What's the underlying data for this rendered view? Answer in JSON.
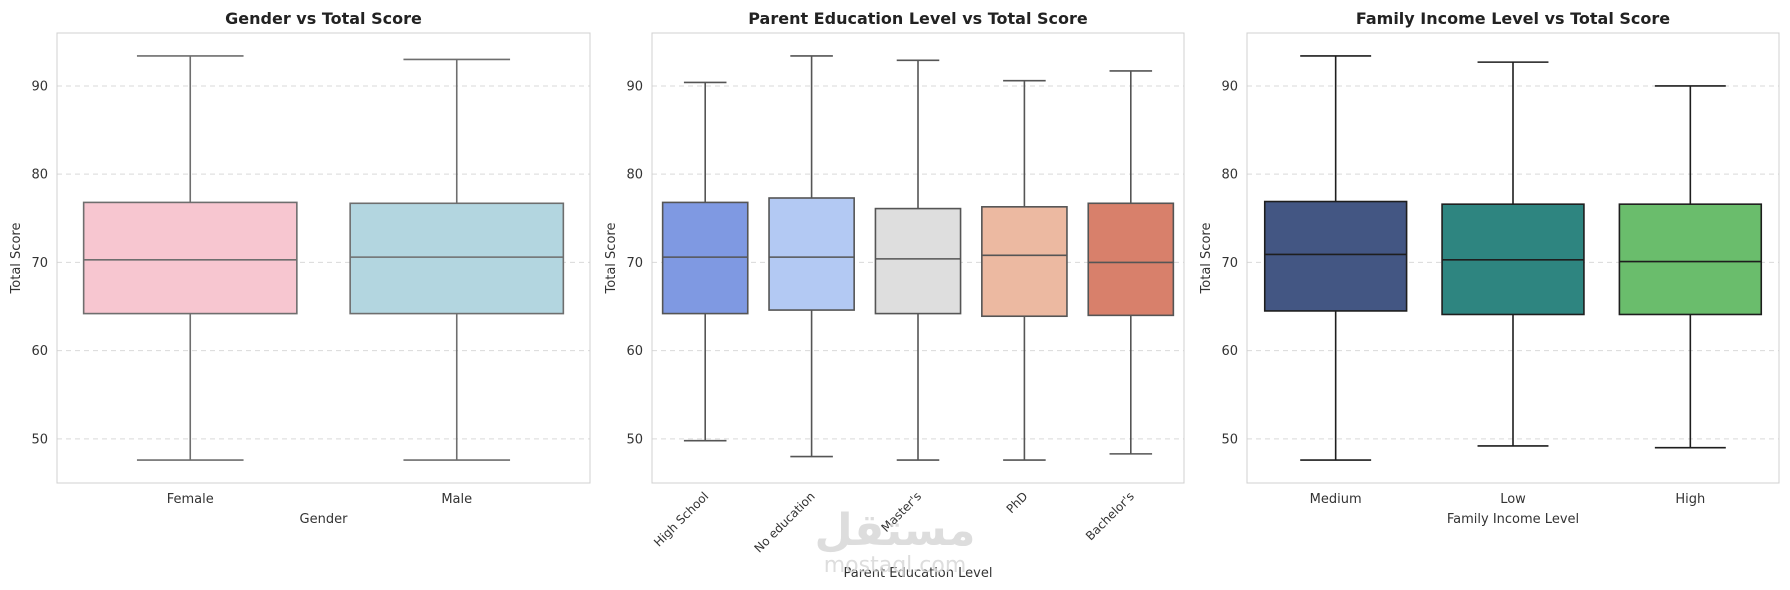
{
  "chart_data": [
    {
      "type": "box",
      "title": "Gender vs Total Score",
      "xlabel": "Gender",
      "ylabel": "Total Score",
      "ylim": [
        45,
        96
      ],
      "yticks": [
        50,
        60,
        70,
        80,
        90
      ],
      "grid": true,
      "rotate_xticks": false,
      "whisker_color": "#6e6e6e",
      "categories": [
        "Female",
        "Male"
      ],
      "colors": [
        "#f7c6d0",
        "#b3d6e0"
      ],
      "boxes": [
        {
          "min": 47.6,
          "q1": 64.2,
          "median": 70.3,
          "q3": 76.8,
          "max": 93.4
        },
        {
          "min": 47.6,
          "q1": 64.2,
          "median": 70.6,
          "q3": 76.7,
          "max": 93.0
        }
      ]
    },
    {
      "type": "box",
      "title": "Parent Education Level vs Total Score",
      "xlabel": "Parent Education Level",
      "ylabel": "Total Score",
      "ylim": [
        45,
        96
      ],
      "yticks": [
        50,
        60,
        70,
        80,
        90
      ],
      "grid": true,
      "rotate_xticks": true,
      "whisker_color": "#555555",
      "categories": [
        "High School",
        "No education",
        "Master's",
        "PhD",
        "Bachelor's"
      ],
      "colors": [
        "#7f99e2",
        "#b3c9f3",
        "#dedede",
        "#ecb9a1",
        "#d8806b"
      ],
      "boxes": [
        {
          "min": 49.8,
          "q1": 64.2,
          "median": 70.6,
          "q3": 76.8,
          "max": 90.4
        },
        {
          "min": 48.0,
          "q1": 64.6,
          "median": 70.6,
          "q3": 77.3,
          "max": 93.4
        },
        {
          "min": 47.6,
          "q1": 64.2,
          "median": 70.4,
          "q3": 76.1,
          "max": 92.9
        },
        {
          "min": 47.6,
          "q1": 63.9,
          "median": 70.8,
          "q3": 76.3,
          "max": 90.6
        },
        {
          "min": 48.3,
          "q1": 64.0,
          "median": 70.0,
          "q3": 76.7,
          "max": 91.7
        }
      ]
    },
    {
      "type": "box",
      "title": "Family Income Level vs Total Score",
      "xlabel": "Family Income Level",
      "ylabel": "Total Score",
      "ylim": [
        45,
        96
      ],
      "yticks": [
        50,
        60,
        70,
        80,
        90
      ],
      "grid": true,
      "rotate_xticks": false,
      "whisker_color": "#1e1e1e",
      "categories": [
        "Medium",
        "Low",
        "High"
      ],
      "colors": [
        "#435683",
        "#2e8580",
        "#6abd6c"
      ],
      "boxes": [
        {
          "min": 47.6,
          "q1": 64.5,
          "median": 70.9,
          "q3": 76.9,
          "max": 93.4
        },
        {
          "min": 49.2,
          "q1": 64.1,
          "median": 70.3,
          "q3": 76.6,
          "max": 92.7
        },
        {
          "min": 49.0,
          "q1": 64.1,
          "median": 70.1,
          "q3": 76.6,
          "max": 90.0
        }
      ]
    }
  ],
  "watermark": {
    "logo_text": "مستقل",
    "sub_text": "mostaql.com"
  }
}
